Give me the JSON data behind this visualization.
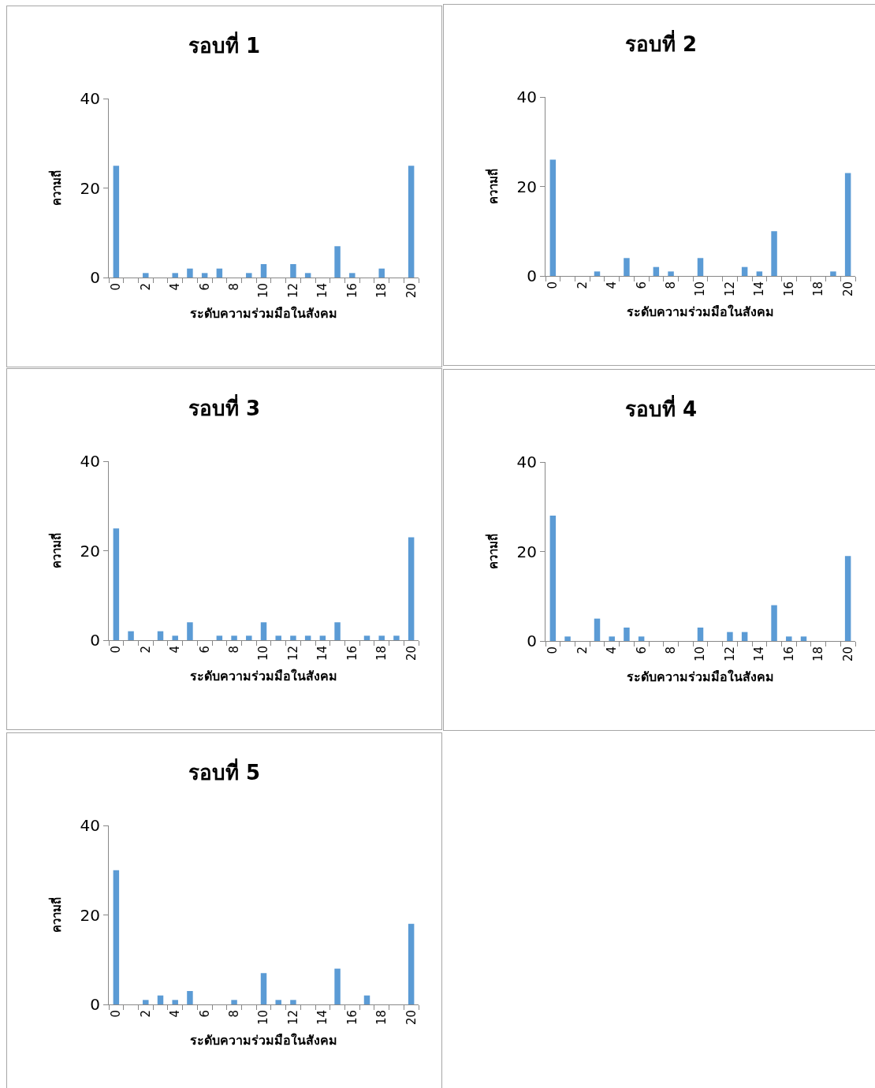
{
  "chart_data": [
    {
      "type": "bar",
      "title": "รอบที่ 1",
      "xlabel": "ระดับความร่วมมือในสังคม",
      "ylabel": "ความถี่",
      "categories": [
        "0",
        null,
        "2",
        null,
        "4",
        null,
        "6",
        null,
        "8",
        null,
        "10",
        null,
        "12",
        null,
        "14",
        null,
        "16",
        null,
        "18",
        null,
        "20"
      ],
      "values": [
        25,
        0,
        1,
        0,
        1,
        2,
        1,
        2,
        0,
        1,
        3,
        0,
        3,
        1,
        0,
        7,
        1,
        0,
        2,
        0,
        25
      ],
      "color": "#5b9bd5",
      "ylim": [
        0,
        40
      ],
      "yticks": [
        0,
        20,
        40
      ]
    },
    {
      "type": "bar",
      "title": "รอบที่ 2",
      "xlabel": "ระดับความร่วมมือในสังคม",
      "ylabel": "ความถี่",
      "categories": [
        "0",
        null,
        "2",
        null,
        "4",
        null,
        "6",
        null,
        "8",
        null,
        "10",
        null,
        "12",
        null,
        "14",
        null,
        "16",
        null,
        "18",
        null,
        "20"
      ],
      "values": [
        26,
        0,
        0,
        1,
        0,
        4,
        0,
        2,
        1,
        0,
        4,
        0,
        0,
        2,
        1,
        10,
        0,
        0,
        0,
        1,
        23
      ],
      "color": "#5b9bd5",
      "ylim": [
        0,
        40
      ],
      "yticks": [
        0,
        20,
        40
      ]
    },
    {
      "type": "bar",
      "title": "รอบที่ 3",
      "xlabel": "ระดับความร่วมมือในสังคม",
      "ylabel": "ความถี่",
      "categories": [
        "0",
        null,
        "2",
        null,
        "4",
        null,
        "6",
        null,
        "8",
        null,
        "10",
        null,
        "12",
        null,
        "14",
        null,
        "16",
        null,
        "18",
        null,
        "20"
      ],
      "values": [
        25,
        2,
        0,
        2,
        1,
        4,
        0,
        1,
        1,
        1,
        4,
        1,
        1,
        1,
        1,
        4,
        0,
        1,
        1,
        1,
        23
      ],
      "color": "#5b9bd5",
      "ylim": [
        0,
        40
      ],
      "yticks": [
        0,
        20,
        40
      ]
    },
    {
      "type": "bar",
      "title": "รอบที่ 4",
      "xlabel": "ระดับความร่วมมือในสังคม",
      "ylabel": "ความถี่",
      "categories": [
        "0",
        null,
        "2",
        null,
        "4",
        null,
        "6",
        null,
        "8",
        null,
        "10",
        null,
        "12",
        null,
        "14",
        null,
        "16",
        null,
        "18",
        null,
        "20"
      ],
      "values": [
        28,
        1,
        0,
        5,
        1,
        3,
        1,
        0,
        0,
        0,
        3,
        0,
        2,
        2,
        0,
        8,
        1,
        1,
        0,
        0,
        19
      ],
      "color": "#5b9bd5",
      "ylim": [
        0,
        40
      ],
      "yticks": [
        0,
        20,
        40
      ]
    },
    {
      "type": "bar",
      "title": "รอบที่ 5",
      "xlabel": "ระดับความร่วมมือในสังคม",
      "ylabel": "ความถี่",
      "categories": [
        "0",
        null,
        "2",
        null,
        "4",
        null,
        "6",
        null,
        "8",
        null,
        "10",
        null,
        "12",
        null,
        "14",
        null,
        "16",
        null,
        "18",
        null,
        "20"
      ],
      "values": [
        30,
        0,
        1,
        2,
        1,
        3,
        0,
        0,
        1,
        0,
        7,
        1,
        1,
        0,
        0,
        8,
        0,
        2,
        0,
        0,
        18
      ],
      "color": "#5b9bd5",
      "ylim": [
        0,
        40
      ],
      "yticks": [
        0,
        20,
        40
      ]
    }
  ]
}
